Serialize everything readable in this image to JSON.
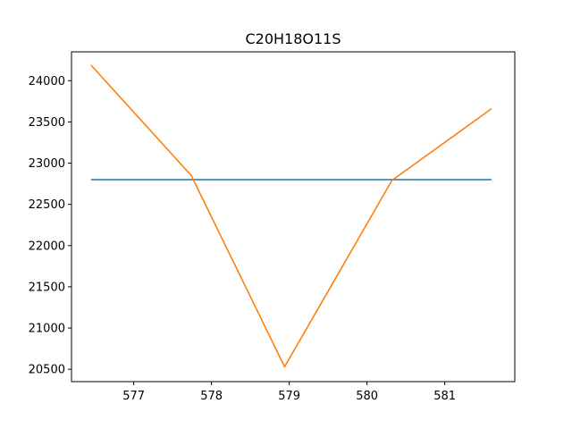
{
  "chart_data": {
    "type": "line",
    "title": "C20H18O11S",
    "xlabel": "",
    "ylabel": "",
    "xlim": [
      576.2,
      581.9
    ],
    "ylim": [
      20350,
      24350
    ],
    "grid": false,
    "legend": "none",
    "x_ticks": [
      577,
      578,
      579,
      580,
      581
    ],
    "y_ticks": [
      20500,
      21000,
      21500,
      22000,
      22500,
      23000,
      23500,
      24000
    ],
    "series": [
      {
        "color": "#1f77b4",
        "x": [
          576.45,
          581.6
        ],
        "y": [
          22800,
          22800
        ]
      },
      {
        "color": "#ff7f0e",
        "x": [
          576.45,
          577.74,
          578.94,
          580.32,
          581.6
        ],
        "y": [
          24190,
          22850,
          20530,
          22790,
          23660
        ]
      }
    ]
  }
}
